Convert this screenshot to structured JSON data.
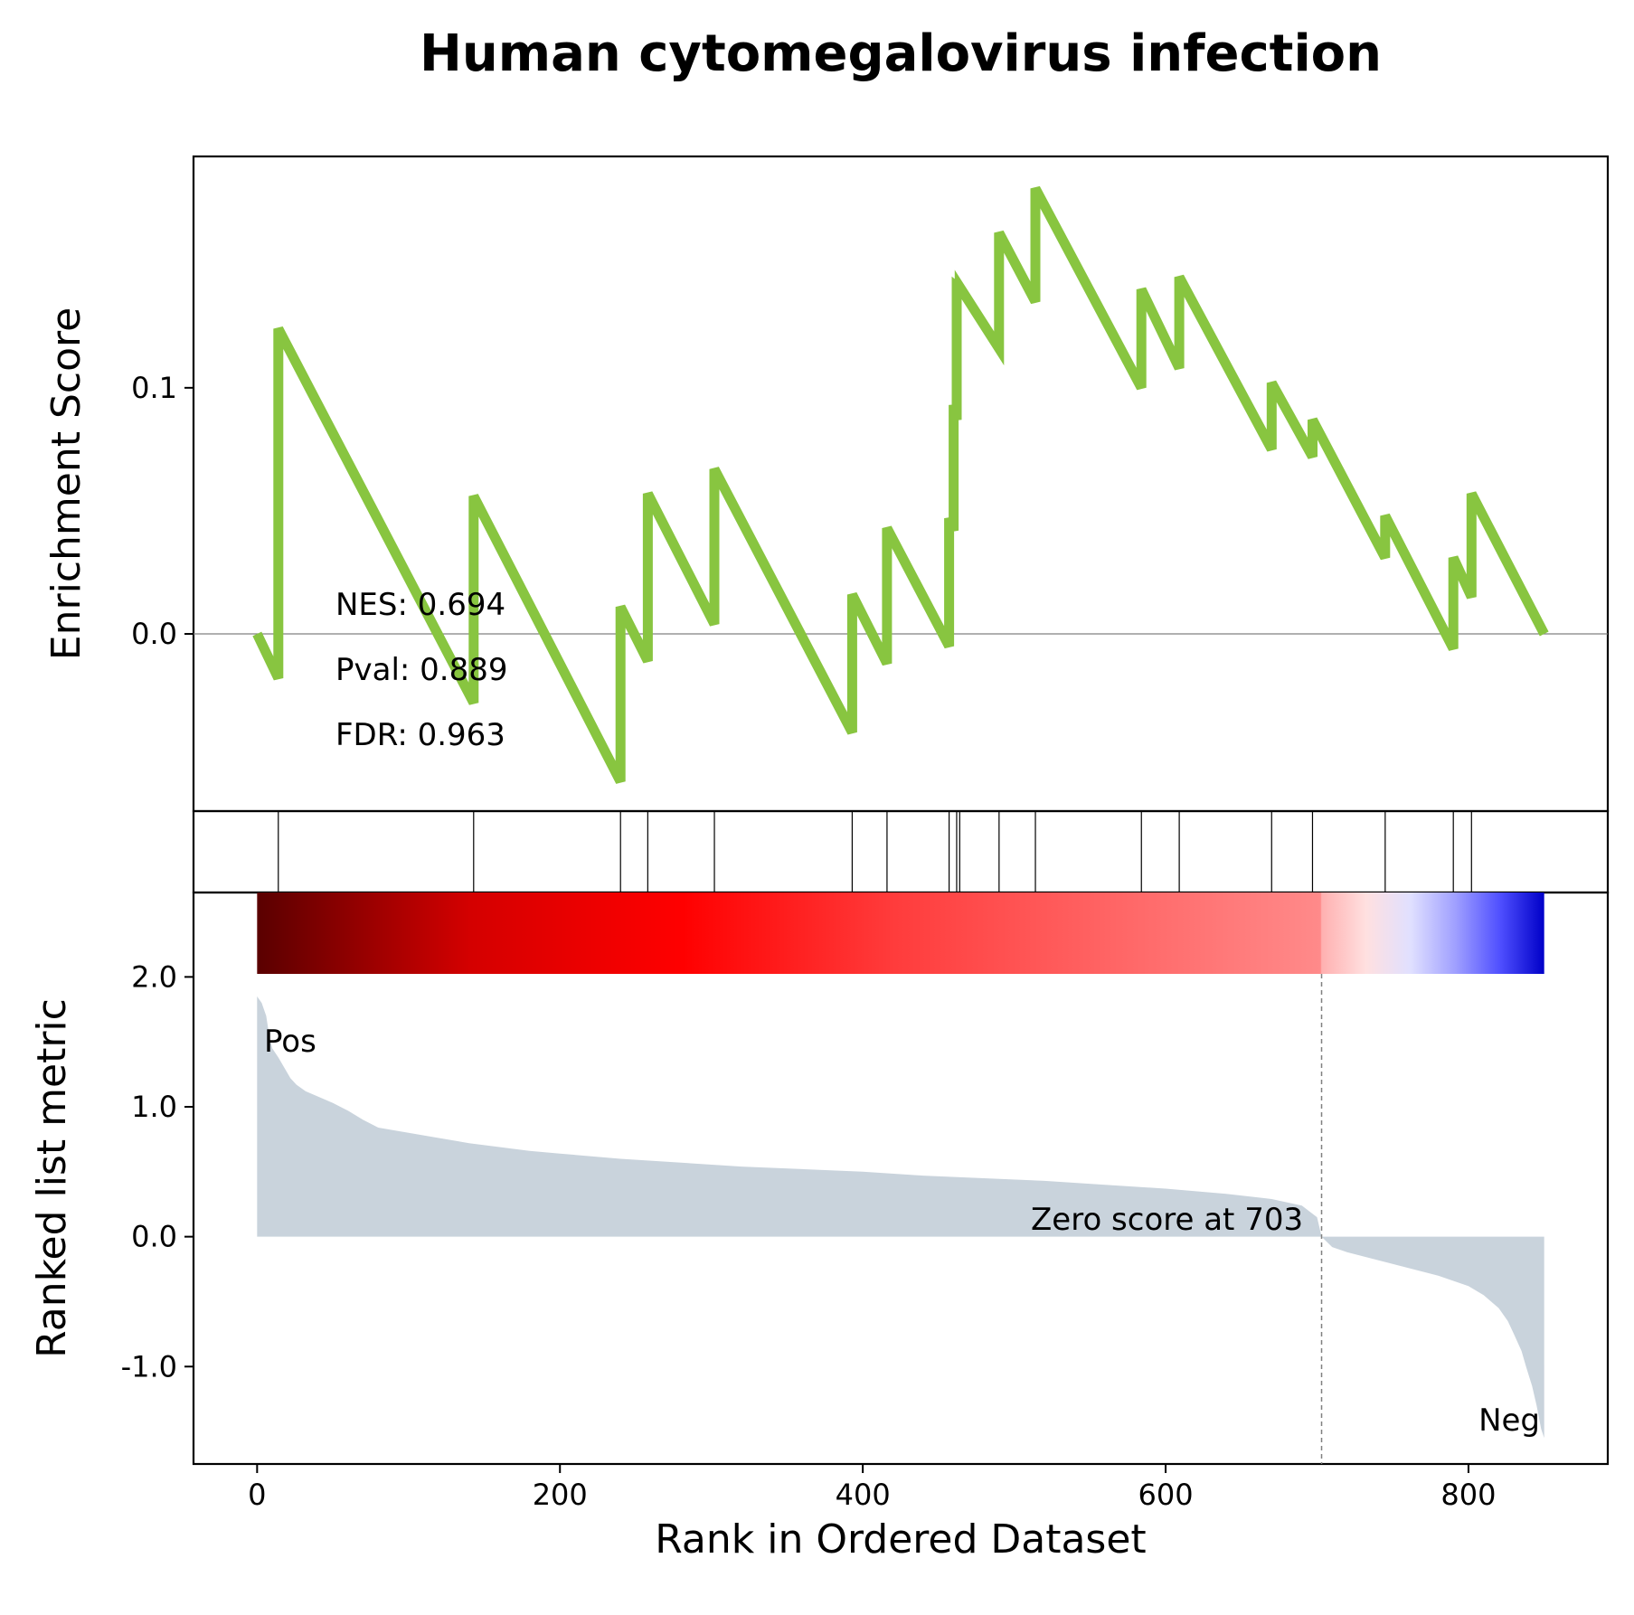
{
  "chart_data": {
    "type": "line",
    "title": "Human cytomegalovirus infection",
    "xlabel": "Rank in Ordered Dataset",
    "xlim": [
      -42,
      892
    ],
    "xticks": [
      0,
      200,
      400,
      600,
      800
    ],
    "xtick_labels": [
      "0",
      "200",
      "400",
      "600",
      "800"
    ],
    "enrichment": {
      "ylabel": "Enrichment Score",
      "ylim": [
        -0.072,
        0.194
      ],
      "yticks": [
        0.0,
        0.1
      ],
      "ytick_labels": [
        "0.0",
        "0.1"
      ],
      "line_color": "#88c540",
      "x": [
        0,
        14,
        14,
        143,
        143,
        240,
        240,
        258,
        258,
        302,
        302,
        393,
        393,
        416,
        416,
        457,
        457,
        460,
        460,
        462,
        462,
        464,
        464,
        490,
        490,
        514,
        514,
        584,
        584,
        609,
        609,
        670,
        670,
        697,
        697,
        745,
        745,
        790,
        790,
        802,
        802,
        850
      ],
      "y": [
        0.0,
        -0.018,
        0.124,
        -0.028,
        0.056,
        -0.06,
        0.011,
        -0.011,
        0.057,
        0.004,
        0.067,
        -0.04,
        0.016,
        -0.012,
        0.043,
        -0.005,
        0.047,
        0.042,
        0.093,
        0.087,
        0.141,
        0.14,
        0.141,
        0.116,
        0.163,
        0.135,
        0.181,
        0.1,
        0.14,
        0.108,
        0.145,
        0.075,
        0.102,
        0.072,
        0.087,
        0.031,
        0.048,
        -0.006,
        0.031,
        0.015,
        0.057,
        0.0
      ],
      "stats": [
        "NES: 0.694",
        "Pval: 0.889",
        "FDR: 0.963"
      ]
    },
    "hits": [
      14,
      143,
      240,
      258,
      302,
      393,
      416,
      457,
      462,
      464,
      490,
      514,
      584,
      609,
      670,
      697,
      745,
      790,
      802
    ],
    "ranked_metric": {
      "ylabel": "Ranked list metric",
      "ylim": [
        -1.75,
        2.65
      ],
      "yticks": [
        -1.0,
        0.0,
        1.0,
        2.0
      ],
      "ytick_labels": [
        "-1.0",
        "0.0",
        "1.0",
        "2.0"
      ],
      "fill_color": "#c9d3dc",
      "x": [
        0,
        3,
        6,
        8,
        10,
        14,
        18,
        22,
        26,
        32,
        40,
        50,
        60,
        70,
        80,
        90,
        100,
        120,
        140,
        160,
        180,
        200,
        240,
        280,
        320,
        360,
        400,
        440,
        480,
        520,
        560,
        600,
        640,
        670,
        690,
        700,
        703,
        710,
        720,
        740,
        760,
        780,
        800,
        810,
        820,
        826,
        830,
        835,
        838,
        842,
        845,
        848,
        850
      ],
      "y": [
        1.85,
        1.8,
        1.7,
        1.55,
        1.45,
        1.38,
        1.3,
        1.22,
        1.17,
        1.12,
        1.08,
        1.03,
        0.97,
        0.9,
        0.84,
        0.82,
        0.8,
        0.76,
        0.72,
        0.69,
        0.66,
        0.64,
        0.6,
        0.57,
        0.54,
        0.52,
        0.5,
        0.47,
        0.45,
        0.43,
        0.4,
        0.37,
        0.33,
        0.29,
        0.24,
        0.15,
        0.0,
        -0.08,
        -0.12,
        -0.18,
        -0.24,
        -0.3,
        -0.38,
        -0.45,
        -0.55,
        -0.65,
        -0.75,
        -0.88,
        -1.0,
        -1.15,
        -1.3,
        -1.48,
        -1.55
      ],
      "zero_cross": 703,
      "zero_label": "Zero score at 703",
      "pos_label": "Pos",
      "pos_color": "#ff0000",
      "neg_label": "Neg",
      "neg_color": "#0000ff"
    },
    "colorbar": {
      "colors": [
        "#5a0000",
        "#d40000",
        "#ff0000",
        "#ff3c3c",
        "#ff6464",
        "#ff8a8a",
        "#ffb0b0",
        "#ffe0e0",
        "#e0e0ff",
        "#a0a0ff",
        "#5050ff",
        "#0000c8"
      ]
    },
    "grid": false
  }
}
